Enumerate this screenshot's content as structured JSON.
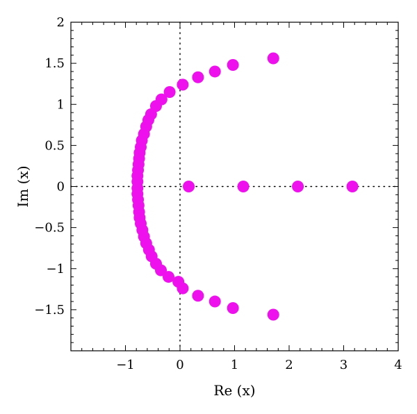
{
  "chart_data": {
    "type": "scatter",
    "xlabel": "Re (x)",
    "ylabel": "Im (x)",
    "xlim": [
      -2.0,
      4.0
    ],
    "ylim": [
      -2.0,
      2.0
    ],
    "x_ticks": [
      -1,
      0,
      1,
      2,
      3,
      4
    ],
    "x_tick_labels": [
      "−1",
      "0",
      "1",
      "2",
      "3",
      "4"
    ],
    "y_ticks": [
      -1.5,
      -1,
      -0.5,
      0,
      0.5,
      1,
      1.5,
      2
    ],
    "y_tick_labels": [
      "−1.5",
      "−1",
      "−0.5",
      "0",
      "0.5",
      "1",
      "1.5",
      "2"
    ],
    "reference_lines": {
      "x": 0,
      "y": 0,
      "style": "dotted"
    },
    "grid": false,
    "marker_color": "#ee11ee",
    "series": [
      {
        "points": [
          [
            1.71,
            1.56
          ],
          [
            0.97,
            1.48
          ],
          [
            0.64,
            1.4
          ],
          [
            0.33,
            1.33
          ],
          [
            0.05,
            1.24
          ],
          [
            -0.19,
            1.15
          ],
          [
            -0.34,
            1.06
          ],
          [
            -0.44,
            0.98
          ],
          [
            -0.53,
            0.88
          ],
          [
            -0.58,
            0.81
          ],
          [
            -0.62,
            0.73
          ],
          [
            -0.66,
            0.64
          ],
          [
            -0.7,
            0.56
          ],
          [
            -0.72,
            0.48
          ],
          [
            -0.74,
            0.41
          ],
          [
            -0.75,
            0.34
          ],
          [
            -0.76,
            0.27
          ],
          [
            -0.77,
            0.2
          ],
          [
            -0.78,
            0.13
          ],
          [
            -0.78,
            0.06
          ],
          [
            -0.78,
            -0.02
          ],
          [
            -0.78,
            -0.09
          ],
          [
            -0.77,
            -0.16
          ],
          [
            -0.76,
            -0.23
          ],
          [
            -0.75,
            -0.31
          ],
          [
            -0.74,
            -0.38
          ],
          [
            -0.72,
            -0.45
          ],
          [
            -0.69,
            -0.53
          ],
          [
            -0.66,
            -0.61
          ],
          [
            -0.62,
            -0.69
          ],
          [
            -0.57,
            -0.77
          ],
          [
            -0.52,
            -0.85
          ],
          [
            -0.44,
            -0.94
          ],
          [
            -0.35,
            -1.02
          ],
          [
            -0.21,
            -1.1
          ],
          [
            -0.03,
            -1.16
          ],
          [
            0.05,
            -1.24
          ],
          [
            0.33,
            -1.33
          ],
          [
            0.64,
            -1.4
          ],
          [
            0.97,
            -1.48
          ],
          [
            1.71,
            -1.56
          ],
          [
            0.16,
            0.0
          ],
          [
            1.16,
            0.0
          ],
          [
            2.16,
            0.0
          ],
          [
            3.16,
            0.0
          ]
        ]
      }
    ]
  }
}
